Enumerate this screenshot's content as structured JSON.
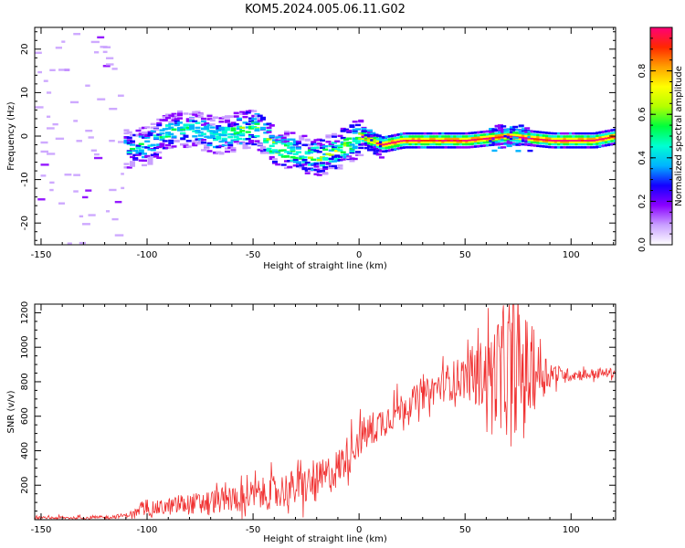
{
  "title": "KOM5.2024.005.06.11.G02",
  "chart_data": [
    {
      "type": "heatmap",
      "xlabel": "Height of straight line (km)",
      "ylabel": "Frequency (Hz)",
      "xlim": [
        -153,
        121
      ],
      "ylim": [
        -25,
        25
      ],
      "xticks": [
        -150,
        -100,
        -50,
        0,
        50,
        100
      ],
      "yticks": [
        -20,
        -10,
        0,
        10,
        20
      ],
      "colorbar": {
        "label": "Normalized spectral amplitude",
        "range": [
          0,
          1
        ],
        "ticks": [
          0.0,
          0.2,
          0.4,
          0.6,
          0.8
        ],
        "colors": [
          "#ffffff",
          "#c9a0ff",
          "#8a00ff",
          "#1400ff",
          "#00b4ff",
          "#00ffd2",
          "#00ff3c",
          "#b4ff00",
          "#ffff00",
          "#ffa000",
          "#ff2800",
          "#ff0078"
        ]
      },
      "ridge_x": [
        -110,
        -100,
        -90,
        -80,
        -70,
        -60,
        -50,
        -40,
        -30,
        -20,
        -10,
        0,
        10,
        20,
        30,
        50,
        70,
        90,
        110,
        121
      ],
      "ridge_y": [
        -3,
        -2,
        1,
        2,
        0,
        1,
        2,
        -3,
        -4,
        -5,
        -3,
        0,
        -2,
        -1,
        -1,
        -1,
        0,
        -1,
        -1,
        0
      ]
    },
    {
      "type": "line",
      "xlabel": "Height of straight line (km)",
      "ylabel": "SNR (v/v)",
      "xlim": [
        -153,
        121
      ],
      "ylim": [
        0,
        1250
      ],
      "xticks": [
        -150,
        -100,
        -50,
        0,
        50,
        100
      ],
      "yticks": [
        200,
        400,
        600,
        800,
        1000,
        1200
      ],
      "series": [
        {
          "color": "#f03030",
          "trend_x": [
            -153,
            -120,
            -110,
            -100,
            -80,
            -60,
            -40,
            -20,
            -10,
            0,
            10,
            20,
            30,
            40,
            50,
            60,
            70,
            80,
            90,
            100,
            110,
            121
          ],
          "trend_y": [
            10,
            12,
            25,
            60,
            90,
            120,
            160,
            210,
            300,
            470,
            560,
            650,
            720,
            790,
            830,
            850,
            860,
            860,
            850,
            840,
            845,
            855
          ],
          "noise_x": [
            -153,
            -110,
            -100,
            -50,
            -20,
            0,
            30,
            50,
            60,
            70,
            80,
            85,
            95,
            121
          ],
          "noise_y": [
            8,
            12,
            40,
            90,
            120,
            110,
            80,
            130,
            220,
            380,
            320,
            150,
            40,
            25
          ]
        }
      ]
    }
  ]
}
